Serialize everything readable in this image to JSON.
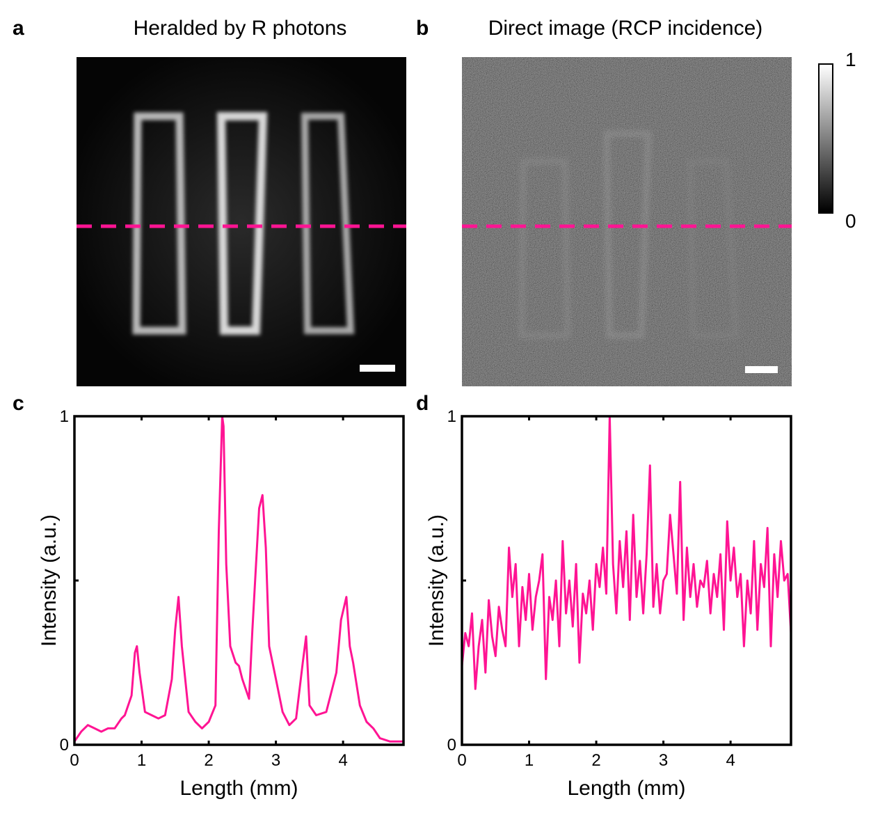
{
  "panels": {
    "a": {
      "letter": "a",
      "title": "Heralded  by R photons"
    },
    "b": {
      "letter": "b",
      "title": "Direct image  (RCP incidence)"
    },
    "c": {
      "letter": "c"
    },
    "d": {
      "letter": "d"
    }
  },
  "colorbar": {
    "max_label": "1",
    "min_label": "0",
    "colors": [
      "#ffffff",
      "#000000"
    ]
  },
  "colors": {
    "profile_line": "#ff1493",
    "dashed_line": "#ff1493",
    "image_bg": "#050505"
  },
  "chart_data": [
    {
      "id": "c",
      "type": "line",
      "xlabel": "Length  (mm)",
      "ylabel": "Intensity (a.u.)",
      "xlim": [
        0,
        4.9
      ],
      "ylim": [
        0,
        1
      ],
      "xticks": [
        "0",
        "1",
        "2",
        "3",
        "4"
      ],
      "yticks": [
        "0",
        "1"
      ],
      "grid": false,
      "series": [
        {
          "x": [
            0,
            0.1,
            0.2,
            0.3,
            0.4,
            0.5,
            0.6,
            0.7,
            0.75,
            0.85,
            0.9,
            0.93,
            0.97,
            1.05,
            1.15,
            1.25,
            1.35,
            1.45,
            1.5,
            1.55,
            1.6,
            1.7,
            1.8,
            1.9,
            2.0,
            2.1,
            2.15,
            2.2,
            2.22,
            2.26,
            2.32,
            2.4,
            2.45,
            2.5,
            2.6,
            2.65,
            2.75,
            2.8,
            2.85,
            2.9,
            3.0,
            3.1,
            3.2,
            3.3,
            3.4,
            3.45,
            3.5,
            3.6,
            3.75,
            3.9,
            3.97,
            4.05,
            4.1,
            4.15,
            4.25,
            4.35,
            4.45,
            4.55,
            4.7,
            4.85,
            4.9
          ],
          "y": [
            0.01,
            0.04,
            0.06,
            0.05,
            0.04,
            0.05,
            0.05,
            0.08,
            0.09,
            0.15,
            0.28,
            0.3,
            0.22,
            0.1,
            0.09,
            0.08,
            0.09,
            0.2,
            0.35,
            0.45,
            0.3,
            0.1,
            0.07,
            0.05,
            0.07,
            0.12,
            0.65,
            1.0,
            0.97,
            0.55,
            0.3,
            0.25,
            0.24,
            0.2,
            0.14,
            0.35,
            0.72,
            0.76,
            0.6,
            0.3,
            0.2,
            0.1,
            0.06,
            0.08,
            0.25,
            0.33,
            0.12,
            0.09,
            0.1,
            0.22,
            0.38,
            0.45,
            0.3,
            0.25,
            0.12,
            0.07,
            0.05,
            0.02,
            0.01,
            0.01,
            0.01
          ]
        }
      ]
    },
    {
      "id": "d",
      "type": "line",
      "xlabel": "Length  (mm)",
      "ylabel": "Intensity (a.u.)",
      "xlim": [
        0,
        4.9
      ],
      "ylim": [
        0,
        1
      ],
      "xticks": [
        "0",
        "1",
        "2",
        "3",
        "4"
      ],
      "yticks": [
        "0",
        "1"
      ],
      "grid": false,
      "series": [
        {
          "x": [
            0,
            0.05,
            0.1,
            0.15,
            0.2,
            0.25,
            0.3,
            0.35,
            0.4,
            0.45,
            0.5,
            0.55,
            0.6,
            0.65,
            0.7,
            0.75,
            0.8,
            0.85,
            0.9,
            0.95,
            1.0,
            1.05,
            1.1,
            1.15,
            1.2,
            1.25,
            1.3,
            1.35,
            1.4,
            1.45,
            1.5,
            1.55,
            1.6,
            1.65,
            1.7,
            1.75,
            1.8,
            1.85,
            1.9,
            1.95,
            2.0,
            2.05,
            2.1,
            2.15,
            2.2,
            2.25,
            2.3,
            2.35,
            2.4,
            2.45,
            2.5,
            2.55,
            2.6,
            2.65,
            2.7,
            2.75,
            2.8,
            2.85,
            2.9,
            2.95,
            3.0,
            3.05,
            3.1,
            3.15,
            3.2,
            3.25,
            3.3,
            3.35,
            3.4,
            3.45,
            3.5,
            3.55,
            3.6,
            3.65,
            3.7,
            3.75,
            3.8,
            3.85,
            3.9,
            3.95,
            4.0,
            4.05,
            4.1,
            4.15,
            4.2,
            4.25,
            4.3,
            4.35,
            4.4,
            4.45,
            4.5,
            4.55,
            4.6,
            4.65,
            4.7,
            4.75,
            4.8,
            4.85,
            4.9
          ],
          "y": [
            0.24,
            0.34,
            0.3,
            0.4,
            0.17,
            0.3,
            0.38,
            0.22,
            0.44,
            0.33,
            0.27,
            0.42,
            0.35,
            0.3,
            0.6,
            0.45,
            0.55,
            0.3,
            0.48,
            0.38,
            0.52,
            0.35,
            0.45,
            0.5,
            0.58,
            0.2,
            0.45,
            0.38,
            0.5,
            0.3,
            0.62,
            0.4,
            0.5,
            0.36,
            0.55,
            0.25,
            0.46,
            0.4,
            0.5,
            0.35,
            0.55,
            0.48,
            0.6,
            0.46,
            1.0,
            0.55,
            0.4,
            0.62,
            0.48,
            0.65,
            0.38,
            0.7,
            0.45,
            0.56,
            0.4,
            0.58,
            0.85,
            0.42,
            0.55,
            0.4,
            0.5,
            0.52,
            0.7,
            0.58,
            0.46,
            0.8,
            0.38,
            0.6,
            0.45,
            0.55,
            0.42,
            0.5,
            0.48,
            0.56,
            0.4,
            0.52,
            0.45,
            0.58,
            0.35,
            0.68,
            0.5,
            0.6,
            0.45,
            0.52,
            0.3,
            0.5,
            0.4,
            0.62,
            0.35,
            0.55,
            0.48,
            0.66,
            0.3,
            0.58,
            0.45,
            0.62,
            0.5,
            0.52,
            0.34
          ]
        }
      ]
    }
  ]
}
